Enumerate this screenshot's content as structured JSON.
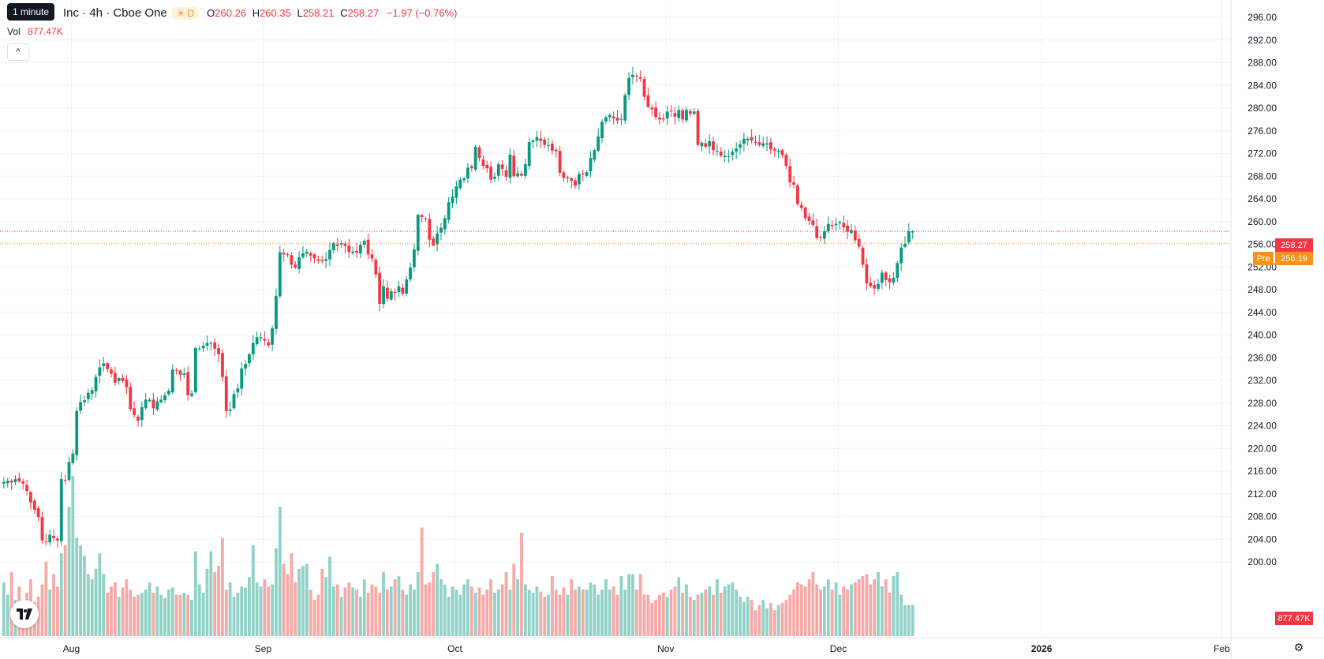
{
  "tooltip": "1 minute",
  "legend": {
    "symbol": "Inc · 4h · Cboe One",
    "session_badge": "D",
    "open_label": "O",
    "open": "260.26",
    "high_label": "H",
    "high": "260.35",
    "low_label": "L",
    "low": "258.21",
    "close_label": "C",
    "close": "258.27",
    "change": "−1.97 (−0.76%)"
  },
  "volume": {
    "label": "Vol",
    "value": "877.47K",
    "axis_value": "877.47K"
  },
  "price_tags": {
    "last": "258.27",
    "pre_label": "Pre",
    "pre": "256.19"
  },
  "colors": {
    "up": "#089981",
    "down": "#f23645",
    "up_vol": "#91d2c7",
    "down_vol": "#f7a9a7",
    "pre": "#f7931a"
  },
  "icons": {
    "collapse": "chevron-up-icon",
    "logo": "tradingview-logo-icon",
    "settings": "gear-icon"
  },
  "chart_data": {
    "type": "candlestick",
    "interval": "4h",
    "ylim": [
      196,
      298
    ],
    "y_ticks": [
      "296.00",
      "292.00",
      "288.00",
      "284.00",
      "280.00",
      "276.00",
      "272.00",
      "268.00",
      "264.00",
      "260.00",
      "256.00",
      "252.00",
      "248.00",
      "244.00",
      "240.00",
      "236.00",
      "232.00",
      "228.00",
      "224.00",
      "220.00",
      "216.00",
      "212.00",
      "208.00",
      "204.00",
      "200.00"
    ],
    "x_ticks": [
      {
        "label": "Aug",
        "bar": 18
      },
      {
        "label": "Sep",
        "bar": 68
      },
      {
        "label": "Oct",
        "bar": 118
      },
      {
        "label": "Nov",
        "bar": 173
      },
      {
        "label": "Dec",
        "bar": 218
      },
      {
        "label": "2026",
        "bar": 271
      },
      {
        "label": "Feb",
        "bar": 318
      }
    ],
    "last_price": 258.27,
    "premarket_price": 256.19,
    "volume_max_label": "877.47K",
    "close": [
      214.1,
      214.3,
      214.0,
      214.6,
      214.2,
      213.8,
      212.5,
      210.5,
      209.2,
      207.9,
      203.8,
      203.6,
      204.8,
      204.2,
      203.8,
      214.6,
      214.3,
      217.6,
      219.1,
      226.6,
      228.2,
      228.5,
      229.8,
      230.3,
      232.6,
      234.3,
      235.0,
      234.0,
      233.2,
      231.6,
      232.4,
      231.9,
      230.8,
      226.9,
      225.9,
      224.9,
      227.3,
      228.6,
      228.6,
      227.1,
      228.3,
      228.6,
      229.4,
      230.2,
      233.9,
      233.8,
      233.0,
      233.2,
      229.4,
      229.7,
      237.7,
      237.6,
      238.1,
      238.6,
      238.6,
      237.6,
      236.6,
      232.6,
      226.6,
      226.9,
      229.6,
      230.6,
      234.1,
      234.9,
      236.6,
      238.6,
      239.6,
      239.6,
      239.0,
      238.2,
      241.2,
      246.9,
      254.6,
      254.2,
      254.1,
      252.4,
      251.9,
      253.7,
      254.4,
      254.7,
      254.0,
      253.5,
      253.1,
      253.0,
      253.4,
      255.0,
      256.2,
      255.7,
      256.2,
      255.7,
      254.6,
      254.7,
      254.5,
      255.9,
      256.6,
      254.2,
      253.5,
      250.7,
      245.5,
      248.6,
      246.4,
      247.7,
      247.4,
      248.6,
      247.3,
      249.8,
      251.9,
      255.1,
      261.2,
      260.8,
      260.5,
      256.8,
      255.8,
      257.9,
      258.9,
      260.6,
      263.4,
      264.4,
      266.2,
      267.4,
      267.6,
      269.5,
      269.4,
      273.2,
      271.2,
      269.8,
      269.4,
      267.4,
      267.9,
      270.1,
      269.3,
      267.9,
      271.8,
      268.0,
      268.5,
      268.1,
      270.1,
      274.0,
      274.3,
      274.9,
      274.2,
      273.5,
      273.5,
      272.5,
      272.4,
      268.6,
      267.7,
      267.8,
      267.2,
      266.3,
      268.4,
      268.3,
      268.7,
      271.2,
      272.6,
      275.0,
      277.6,
      278.4,
      278.8,
      278.2,
      277.8,
      278.1,
      282.3,
      285.3,
      285.9,
      285.6,
      285.2,
      282.0,
      280.2,
      279.8,
      278.4,
      278.0,
      278.0,
      279.4,
      279.4,
      278.5,
      279.7,
      278.0,
      279.7,
      279.0,
      279.4,
      273.5,
      273.9,
      273.2,
      274.2,
      272.6,
      272.5,
      271.6,
      271.6,
      271.5,
      272.3,
      272.9,
      273.6,
      274.6,
      274.6,
      274.3,
      273.9,
      273.5,
      273.8,
      273.8,
      272.7,
      272.5,
      272.5,
      271.7,
      269.8,
      266.9,
      266.5,
      263.1,
      262.4,
      260.6,
      260.1,
      259.4,
      257.1,
      257.2,
      258.3,
      259.6,
      259.2,
      259.6,
      259.9,
      259.0,
      258.2,
      258.5,
      256.7,
      255.6,
      252.4,
      249.1,
      248.6,
      248.2,
      249.0,
      251.0,
      249.7,
      249.3,
      250.1,
      252.7,
      255.4,
      256.1,
      258.3,
      258.3
    ],
    "volume_levels": [
      0.52,
      0.4,
      0.62,
      0.35,
      0.48,
      0.3,
      0.42,
      0.55,
      0.33,
      0.38,
      0.5,
      0.72,
      0.45,
      0.6,
      0.48,
      0.8,
      0.88,
      1.25,
      1.55,
      0.95,
      0.88,
      0.78,
      0.6,
      0.55,
      0.65,
      0.8,
      0.6,
      0.42,
      0.48,
      0.52,
      0.38,
      0.47,
      0.55,
      0.45,
      0.38,
      0.4,
      0.42,
      0.45,
      0.52,
      0.42,
      0.48,
      0.4,
      0.37,
      0.45,
      0.47,
      0.4,
      0.4,
      0.42,
      0.4,
      0.35,
      0.82,
      0.5,
      0.42,
      0.65,
      0.82,
      0.62,
      0.68,
      0.95,
      0.45,
      0.52,
      0.38,
      0.42,
      0.48,
      0.47,
      0.57,
      0.88,
      0.52,
      0.48,
      0.55,
      0.48,
      0.5,
      0.85,
      1.25,
      0.7,
      0.6,
      0.8,
      0.52,
      0.65,
      0.68,
      0.7,
      0.45,
      0.35,
      0.4,
      0.65,
      0.57,
      0.77,
      0.48,
      0.5,
      0.38,
      0.47,
      0.52,
      0.47,
      0.45,
      0.38,
      0.55,
      0.42,
      0.5,
      0.48,
      0.42,
      0.62,
      0.45,
      0.48,
      0.55,
      0.58,
      0.45,
      0.4,
      0.5,
      0.45,
      0.62,
      1.05,
      0.5,
      0.52,
      0.62,
      0.7,
      0.55,
      0.5,
      0.38,
      0.48,
      0.45,
      0.4,
      0.5,
      0.55,
      0.48,
      0.42,
      0.47,
      0.4,
      0.45,
      0.55,
      0.42,
      0.45,
      0.5,
      0.62,
      0.45,
      0.7,
      0.55,
      1.0,
      0.5,
      0.45,
      0.42,
      0.48,
      0.43,
      0.38,
      0.4,
      0.58,
      0.45,
      0.4,
      0.47,
      0.4,
      0.55,
      0.45,
      0.48,
      0.45,
      0.45,
      0.52,
      0.5,
      0.4,
      0.45,
      0.55,
      0.45,
      0.48,
      0.4,
      0.58,
      0.45,
      0.6,
      0.6,
      0.45,
      0.6,
      0.4,
      0.4,
      0.32,
      0.35,
      0.4,
      0.42,
      0.38,
      0.45,
      0.48,
      0.57,
      0.42,
      0.5,
      0.38,
      0.35,
      0.4,
      0.42,
      0.45,
      0.48,
      0.4,
      0.55,
      0.42,
      0.48,
      0.5,
      0.52,
      0.45,
      0.38,
      0.33,
      0.38,
      0.35,
      0.25,
      0.3,
      0.35,
      0.27,
      0.32,
      0.25,
      0.3,
      0.32,
      0.35,
      0.4,
      0.45,
      0.52,
      0.5,
      0.48,
      0.55,
      0.62,
      0.5,
      0.45,
      0.48,
      0.55,
      0.45,
      0.52,
      0.4,
      0.48,
      0.45,
      0.5,
      0.52,
      0.55,
      0.58,
      0.6,
      0.5,
      0.55,
      0.62,
      0.48,
      0.55,
      0.42,
      0.58,
      0.62,
      0.4,
      0.3
    ]
  }
}
